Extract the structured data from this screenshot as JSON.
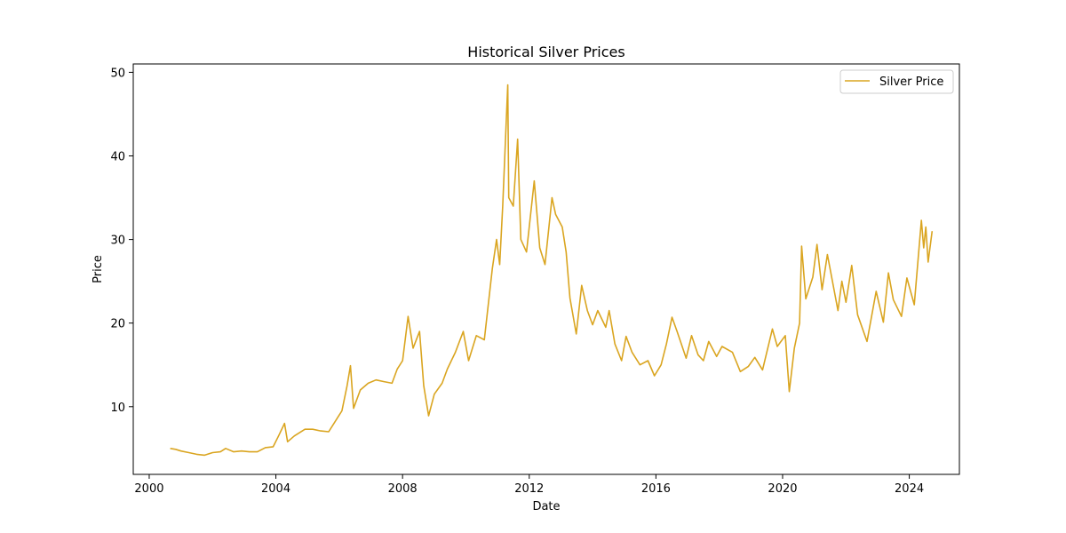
{
  "chart_data": {
    "type": "line",
    "title": "Historical Silver Prices",
    "xlabel": "Date",
    "ylabel": "Price",
    "x_ticks": [
      "2000",
      "2004",
      "2008",
      "2012",
      "2016",
      "2020",
      "2024"
    ],
    "y_ticks": [
      "10",
      "20",
      "30",
      "40",
      "50"
    ],
    "xlim": [
      "1999-07-01",
      "2025-08-01"
    ],
    "ylim": [
      1.9,
      51.0
    ],
    "grid": false,
    "legend_position": "top-right",
    "series": [
      {
        "name": "Silver Price",
        "color": "#DAA520",
        "points": [
          [
            "2000-08-30",
            5.0
          ],
          [
            "2000-11-01",
            4.9
          ],
          [
            "2001-01-01",
            4.7
          ],
          [
            "2001-04-01",
            4.5
          ],
          [
            "2001-07-01",
            4.3
          ],
          [
            "2001-10-01",
            4.2
          ],
          [
            "2002-01-01",
            4.5
          ],
          [
            "2002-04-01",
            4.6
          ],
          [
            "2002-06-01",
            5.0
          ],
          [
            "2002-09-01",
            4.6
          ],
          [
            "2002-12-01",
            4.7
          ],
          [
            "2003-03-01",
            4.6
          ],
          [
            "2003-06-01",
            4.6
          ],
          [
            "2003-09-01",
            5.1
          ],
          [
            "2003-12-01",
            5.2
          ],
          [
            "2004-02-01",
            6.5
          ],
          [
            "2004-04-10",
            8.0
          ],
          [
            "2004-05-15",
            5.8
          ],
          [
            "2004-08-01",
            6.5
          ],
          [
            "2004-12-01",
            7.3
          ],
          [
            "2005-03-01",
            7.3
          ],
          [
            "2005-06-01",
            7.1
          ],
          [
            "2005-09-01",
            7.0
          ],
          [
            "2005-12-01",
            8.5
          ],
          [
            "2006-02-01",
            9.5
          ],
          [
            "2006-04-01",
            12.5
          ],
          [
            "2006-05-10",
            14.9
          ],
          [
            "2006-06-15",
            9.8
          ],
          [
            "2006-09-01",
            12.0
          ],
          [
            "2006-12-01",
            12.8
          ],
          [
            "2007-03-01",
            13.2
          ],
          [
            "2007-06-01",
            13.0
          ],
          [
            "2007-09-01",
            12.8
          ],
          [
            "2007-11-01",
            14.5
          ],
          [
            "2008-01-01",
            15.5
          ],
          [
            "2008-03-05",
            20.8
          ],
          [
            "2008-05-01",
            17.0
          ],
          [
            "2008-07-15",
            19.0
          ],
          [
            "2008-09-01",
            12.5
          ],
          [
            "2008-10-28",
            8.9
          ],
          [
            "2009-01-01",
            11.5
          ],
          [
            "2009-04-01",
            12.8
          ],
          [
            "2009-06-01",
            14.5
          ],
          [
            "2009-09-01",
            16.5
          ],
          [
            "2009-12-01",
            19.0
          ],
          [
            "2010-02-01",
            15.5
          ],
          [
            "2010-05-01",
            18.5
          ],
          [
            "2010-08-01",
            18.0
          ],
          [
            "2010-11-01",
            26.5
          ],
          [
            "2010-12-20",
            30.0
          ],
          [
            "2011-01-25",
            27.0
          ],
          [
            "2011-03-01",
            34.0
          ],
          [
            "2011-04-28",
            48.5
          ],
          [
            "2011-05-10",
            35.0
          ],
          [
            "2011-07-01",
            34.0
          ],
          [
            "2011-08-20",
            42.0
          ],
          [
            "2011-09-26",
            30.0
          ],
          [
            "2011-12-01",
            28.5
          ],
          [
            "2012-02-28",
            37.0
          ],
          [
            "2012-05-01",
            29.0
          ],
          [
            "2012-07-01",
            27.0
          ],
          [
            "2012-09-20",
            35.0
          ],
          [
            "2012-11-01",
            33.0
          ],
          [
            "2013-01-15",
            31.5
          ],
          [
            "2013-03-01",
            28.5
          ],
          [
            "2013-04-15",
            23.0
          ],
          [
            "2013-06-26",
            18.7
          ],
          [
            "2013-08-28",
            24.5
          ],
          [
            "2013-11-01",
            21.5
          ],
          [
            "2014-01-01",
            19.8
          ],
          [
            "2014-03-01",
            21.5
          ],
          [
            "2014-06-01",
            19.5
          ],
          [
            "2014-07-10",
            21.5
          ],
          [
            "2014-09-15",
            17.5
          ],
          [
            "2014-12-01",
            15.5
          ],
          [
            "2015-01-22",
            18.4
          ],
          [
            "2015-04-01",
            16.5
          ],
          [
            "2015-07-01",
            15.0
          ],
          [
            "2015-10-01",
            15.5
          ],
          [
            "2015-12-15",
            13.7
          ],
          [
            "2016-03-01",
            15.0
          ],
          [
            "2016-05-01",
            17.5
          ],
          [
            "2016-07-05",
            20.7
          ],
          [
            "2016-09-01",
            19.0
          ],
          [
            "2016-12-15",
            15.8
          ],
          [
            "2017-02-15",
            18.5
          ],
          [
            "2017-05-01",
            16.2
          ],
          [
            "2017-07-01",
            15.5
          ],
          [
            "2017-09-01",
            17.8
          ],
          [
            "2017-12-01",
            16.0
          ],
          [
            "2018-02-01",
            17.2
          ],
          [
            "2018-06-01",
            16.5
          ],
          [
            "2018-09-01",
            14.2
          ],
          [
            "2018-12-01",
            14.8
          ],
          [
            "2019-02-15",
            15.9
          ],
          [
            "2019-05-15",
            14.4
          ],
          [
            "2019-09-05",
            19.3
          ],
          [
            "2019-11-01",
            17.2
          ],
          [
            "2020-02-01",
            18.5
          ],
          [
            "2020-03-18",
            11.8
          ],
          [
            "2020-05-15",
            17.0
          ],
          [
            "2020-07-15",
            20.0
          ],
          [
            "2020-08-07",
            29.2
          ],
          [
            "2020-09-25",
            22.9
          ],
          [
            "2020-12-15",
            25.5
          ],
          [
            "2021-02-01",
            29.4
          ],
          [
            "2021-03-31",
            24.0
          ],
          [
            "2021-06-01",
            28.2
          ],
          [
            "2021-09-30",
            21.5
          ],
          [
            "2021-11-15",
            25.0
          ],
          [
            "2022-01-01",
            22.5
          ],
          [
            "2022-03-08",
            26.9
          ],
          [
            "2022-05-15",
            21.0
          ],
          [
            "2022-09-01",
            17.8
          ],
          [
            "2022-12-15",
            23.8
          ],
          [
            "2023-03-08",
            20.1
          ],
          [
            "2023-05-05",
            26.0
          ],
          [
            "2023-07-01",
            22.8
          ],
          [
            "2023-10-03",
            20.8
          ],
          [
            "2023-12-04",
            25.4
          ],
          [
            "2024-02-28",
            22.2
          ],
          [
            "2024-05-20",
            32.3
          ],
          [
            "2024-06-15",
            29.0
          ],
          [
            "2024-07-10",
            31.5
          ],
          [
            "2024-08-05",
            27.3
          ],
          [
            "2024-09-20",
            31.0
          ]
        ]
      }
    ]
  }
}
